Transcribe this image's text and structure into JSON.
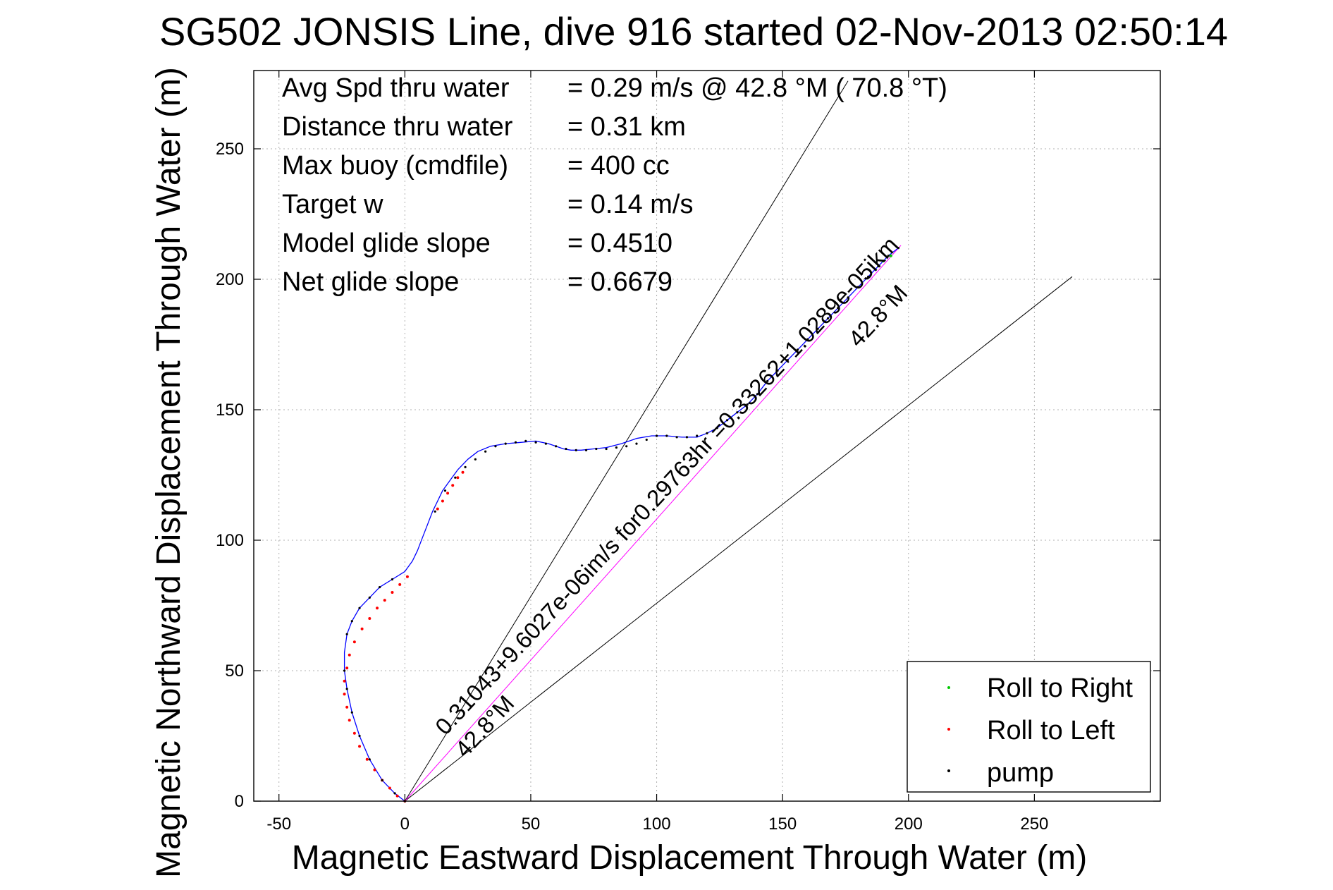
{
  "chart_data": {
    "type": "line",
    "title": "SG502 JONSIS Line, dive 916 started 02-Nov-2013 02:50:14",
    "xlabel": "Magnetic Eastward Displacement Through Water (m)",
    "ylabel": "Magnetic Northward Displacement Through Water (m)",
    "xlim": [
      -60,
      300
    ],
    "ylim": [
      0,
      280
    ],
    "xticks": [
      -50,
      0,
      50,
      100,
      150,
      200,
      250
    ],
    "yticks": [
      0,
      50,
      100,
      150,
      200,
      250
    ],
    "grid": true,
    "legend_position": "bottom-right",
    "legend": [
      {
        "label": "Roll to Right",
        "color": "#00c800"
      },
      {
        "label": "Roll to Left",
        "color": "#ff0000"
      },
      {
        "label": "pump",
        "color": "#000000"
      }
    ],
    "stats": [
      {
        "label": "Avg Spd thru water",
        "value": "=  0.29 m/s @  42.8 °M ( 70.8 °T)"
      },
      {
        "label": "Distance thru water",
        "value": "=  0.31 km"
      },
      {
        "label": "Max buoy (cmdfile)",
        "value": "= 400 cc"
      },
      {
        "label": "Target w",
        "value": "= 0.14 m/s"
      },
      {
        "label": "Model glide slope",
        "value": "= 0.4510"
      },
      {
        "label": "Net glide slope",
        "value": "= 0.6679"
      }
    ],
    "annotations": {
      "upper_line": "0.31043+9.6027e-06im/s for0.29763hr =0.33262+1.0289e-05ikm",
      "upper_heading": "42.8°M",
      "lower_heading": "42.8°M"
    },
    "guide_lines": [
      {
        "name": "upper-bound",
        "x": [
          0,
          176
        ],
        "y": [
          0,
          276
        ]
      },
      {
        "name": "lower-bound",
        "x": [
          0,
          265
        ],
        "y": [
          0,
          201
        ]
      }
    ],
    "net_line": {
      "color": "#ff00ff",
      "x": [
        0,
        197
      ],
      "y": [
        0,
        213
      ]
    },
    "series": [
      {
        "name": "track",
        "color": "#0000ff",
        "x": [
          0,
          -4,
          -9,
          -14,
          -18,
          -21,
          -23,
          -24,
          -24,
          -23,
          -21,
          -18,
          -14,
          -10,
          -5,
          0,
          3,
          5,
          7,
          9,
          11,
          13,
          15,
          18,
          21,
          25,
          29,
          34,
          40,
          46,
          52,
          57,
          60,
          63,
          66,
          70,
          75,
          80,
          86,
          92,
          98,
          104,
          110,
          116,
          120,
          124,
          128,
          132,
          136,
          140,
          144,
          148,
          152,
          156,
          160,
          164,
          168,
          172,
          176,
          180,
          184,
          188,
          192,
          196
        ],
        "y": [
          0,
          3,
          8,
          16,
          25,
          34,
          43,
          50,
          57,
          64,
          69,
          74,
          78,
          82,
          85,
          88,
          92,
          96,
          101,
          106,
          111,
          115,
          119,
          123,
          127,
          131,
          134,
          136,
          137,
          137.5,
          138,
          137,
          136,
          135,
          134.5,
          134.5,
          135,
          135.5,
          137,
          139,
          140,
          140,
          139.5,
          139.5,
          141,
          143,
          146,
          149,
          152,
          156,
          161,
          165,
          169,
          173,
          177,
          181,
          185,
          189,
          193,
          197,
          201,
          205,
          209,
          212
        ]
      }
    ],
    "roll_left_points": {
      "x": [
        0,
        -3,
        -6,
        -9,
        -12,
        -15,
        -18,
        -20,
        -22,
        -23,
        -24,
        -24,
        -23,
        -22,
        -20,
        -17,
        -14,
        -11,
        -8,
        -5,
        -2,
        1,
        13,
        15,
        17,
        19,
        21,
        23
      ],
      "y": [
        0,
        2,
        5,
        8,
        12,
        16,
        21,
        26,
        31,
        36,
        41,
        46,
        51,
        56,
        61,
        66,
        70,
        74,
        77,
        80,
        83,
        86,
        112,
        115,
        118,
        121,
        124,
        126
      ]
    },
    "roll_right_points": {
      "x": [
        190,
        193
      ],
      "y": [
        207,
        209
      ]
    },
    "pump_points": {
      "x": [
        0,
        -4,
        -9,
        -14,
        -18,
        -21,
        -23,
        -24,
        -23,
        -21,
        -18,
        -14,
        -10,
        -5,
        12,
        16,
        20,
        24,
        28,
        32,
        36,
        40,
        44,
        48,
        52,
        56,
        60,
        64,
        68,
        72,
        76,
        80,
        84,
        88,
        92,
        96,
        100,
        104,
        108,
        112,
        116,
        120,
        124,
        128,
        132,
        136,
        140,
        144,
        148,
        152,
        156,
        160,
        164,
        168,
        172,
        176,
        180,
        184,
        188,
        192,
        196
      ],
      "y": [
        0,
        3,
        8,
        16,
        25,
        34,
        43,
        50,
        64,
        69,
        74,
        78,
        82,
        85,
        111,
        119,
        124,
        128,
        131,
        134,
        136,
        137,
        137.5,
        138,
        137.5,
        137,
        136,
        135,
        134.5,
        134.5,
        135,
        135,
        135.5,
        136,
        137,
        138.5,
        140,
        140,
        139.5,
        139.5,
        140,
        141,
        143,
        146,
        149,
        152,
        156,
        161,
        165,
        169,
        173,
        177,
        181,
        185,
        189,
        193,
        197,
        201,
        205,
        209,
        212
      ]
    }
  }
}
